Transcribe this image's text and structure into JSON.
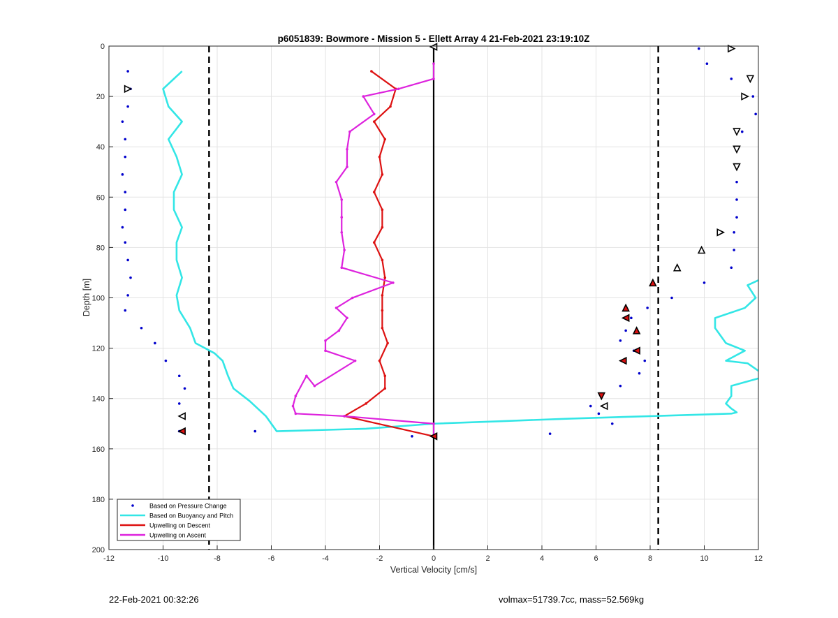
{
  "chart_data": {
    "type": "line",
    "title": "p6051839: Bowmore - Mission 5 - Ellett Array 4 21-Feb-2021 23:19:10Z",
    "xlabel": "Vertical Velocity [cm/s]",
    "ylabel": "Depth [m]",
    "xlim": [
      -12,
      12
    ],
    "ylim": [
      0,
      200
    ],
    "y_reversed": true,
    "grid": true,
    "legend_position": "bottom-left",
    "x_ticks": [
      -12,
      -10,
      -8,
      -6,
      -4,
      -2,
      0,
      2,
      4,
      6,
      8,
      10,
      12
    ],
    "y_ticks": [
      0,
      20,
      40,
      60,
      80,
      100,
      120,
      140,
      160,
      180,
      200
    ],
    "vertical_lines": [
      {
        "x": -8.3,
        "style": "dashed",
        "color": "#000000"
      },
      {
        "x": 8.3,
        "style": "dashed",
        "color": "#000000"
      },
      {
        "x": 0,
        "style": "solid",
        "color": "#000000"
      }
    ],
    "series": [
      {
        "name": "Based on Pressure Change",
        "kind": "points",
        "color": "#0000cc",
        "points": [
          [
            -11.3,
            10
          ],
          [
            -11.2,
            17
          ],
          [
            -11.3,
            24
          ],
          [
            -11.5,
            30
          ],
          [
            -11.4,
            37
          ],
          [
            -11.4,
            44
          ],
          [
            -11.5,
            51
          ],
          [
            -11.4,
            58
          ],
          [
            -11.4,
            65
          ],
          [
            -11.5,
            72
          ],
          [
            -11.4,
            78
          ],
          [
            -11.3,
            85
          ],
          [
            -11.2,
            92
          ],
          [
            -11.3,
            99
          ],
          [
            -11.4,
            105
          ],
          [
            -10.8,
            112
          ],
          [
            -10.3,
            118
          ],
          [
            -9.9,
            125
          ],
          [
            -9.4,
            131
          ],
          [
            -9.2,
            136
          ],
          [
            -9.4,
            142
          ],
          [
            -9.3,
            147
          ],
          [
            -9.4,
            153
          ],
          [
            -6.6,
            153
          ],
          [
            -0.8,
            155
          ],
          [
            9.8,
            1
          ],
          [
            10.1,
            7
          ],
          [
            11.0,
            13
          ],
          [
            11.8,
            20
          ],
          [
            11.9,
            27
          ],
          [
            11.4,
            34
          ],
          [
            11.2,
            41
          ],
          [
            11.2,
            48
          ],
          [
            11.2,
            54
          ],
          [
            11.2,
            61
          ],
          [
            11.2,
            68
          ],
          [
            11.1,
            74
          ],
          [
            11.1,
            81
          ],
          [
            11.0,
            88
          ],
          [
            10.0,
            94
          ],
          [
            8.8,
            100
          ],
          [
            7.9,
            104
          ],
          [
            7.3,
            108
          ],
          [
            7.1,
            113
          ],
          [
            6.9,
            117
          ],
          [
            7.4,
            121
          ],
          [
            7.8,
            125
          ],
          [
            7.6,
            130
          ],
          [
            6.9,
            135
          ],
          [
            5.8,
            143
          ],
          [
            6.1,
            146
          ],
          [
            6.6,
            150
          ],
          [
            4.3,
            154
          ]
        ]
      },
      {
        "name": "Based on Buoyancy and Pitch",
        "kind": "line",
        "color": "#33e6e6",
        "segments": [
          [
            [
              -9.3,
              10
            ],
            [
              -9.6,
              13
            ],
            [
              -10.0,
              17
            ],
            [
              -9.8,
              24
            ],
            [
              -9.3,
              30
            ],
            [
              -9.8,
              37
            ],
            [
              -9.5,
              44
            ],
            [
              -9.3,
              51
            ],
            [
              -9.6,
              58
            ],
            [
              -9.6,
              65
            ],
            [
              -9.3,
              72
            ],
            [
              -9.5,
              78
            ],
            [
              -9.5,
              85
            ],
            [
              -9.3,
              92
            ],
            [
              -9.5,
              99
            ],
            [
              -9.4,
              105
            ],
            [
              -9.0,
              112
            ],
            [
              -8.8,
              118
            ],
            [
              -8.1,
              122
            ],
            [
              -7.8,
              125
            ],
            [
              -7.6,
              131
            ],
            [
              -7.4,
              136
            ],
            [
              -6.8,
              141
            ],
            [
              -6.2,
              147
            ],
            [
              -5.8,
              153
            ],
            [
              -2.5,
              152
            ],
            [
              0,
              150
            ],
            [
              2.5,
              149
            ],
            [
              5.0,
              148
            ],
            [
              8.0,
              147
            ],
            [
              11.0,
              146
            ],
            [
              11.2,
              145.5
            ],
            [
              11.0,
              144
            ],
            [
              10.8,
              142
            ],
            [
              11.0,
              139
            ],
            [
              11.0,
              135
            ],
            [
              12.0,
              132
            ]
          ],
          [
            [
              12.0,
              129
            ],
            [
              11.6,
              126
            ],
            [
              10.8,
              125
            ],
            [
              11.5,
              121
            ],
            [
              10.8,
              118
            ],
            [
              10.4,
              112
            ],
            [
              10.4,
              108
            ],
            [
              11.5,
              104
            ],
            [
              11.9,
              100
            ],
            [
              11.6,
              95
            ],
            [
              12.0,
              93
            ]
          ]
        ]
      },
      {
        "name": "Upwelling on Descent",
        "kind": "line",
        "color": "#dd1111",
        "points": [
          [
            -2.3,
            10
          ],
          [
            -1.4,
            17
          ],
          [
            -1.6,
            24
          ],
          [
            -2.2,
            30
          ],
          [
            -1.8,
            37
          ],
          [
            -2.0,
            44
          ],
          [
            -1.9,
            51
          ],
          [
            -2.2,
            58
          ],
          [
            -1.9,
            65
          ],
          [
            -1.9,
            72
          ],
          [
            -2.2,
            78
          ],
          [
            -1.9,
            85
          ],
          [
            -1.8,
            92
          ],
          [
            -1.9,
            99
          ],
          [
            -1.9,
            105
          ],
          [
            -1.9,
            112
          ],
          [
            -1.7,
            118
          ],
          [
            -2.0,
            125
          ],
          [
            -1.8,
            131
          ],
          [
            -1.8,
            136
          ],
          [
            -2.5,
            142
          ],
          [
            -3.3,
            147
          ],
          [
            0,
            155
          ]
        ]
      },
      {
        "name": "Upwelling on Ascent",
        "kind": "line",
        "color": "#dd22dd",
        "points": [
          [
            0,
            7
          ],
          [
            0,
            13
          ],
          [
            -1.3,
            17
          ],
          [
            -2.6,
            20
          ],
          [
            -2.2,
            27
          ],
          [
            -3.1,
            34
          ],
          [
            -3.2,
            41
          ],
          [
            -3.2,
            48
          ],
          [
            -3.6,
            54
          ],
          [
            -3.4,
            61
          ],
          [
            -3.4,
            68
          ],
          [
            -3.4,
            74
          ],
          [
            -3.3,
            81
          ],
          [
            -3.4,
            88
          ],
          [
            -1.5,
            94
          ],
          [
            -3.0,
            100
          ],
          [
            -3.6,
            104
          ],
          [
            -3.2,
            108
          ],
          [
            -3.5,
            113
          ],
          [
            -4.0,
            117
          ],
          [
            -4.0,
            121
          ],
          [
            -2.9,
            125
          ],
          [
            -4.4,
            135
          ],
          [
            -4.7,
            131
          ],
          [
            -5.1,
            139
          ],
          [
            -5.2,
            143
          ],
          [
            -5.1,
            146
          ],
          [
            -3.3,
            147
          ],
          [
            0,
            150
          ],
          [
            0,
            155
          ]
        ]
      }
    ],
    "triangle_markers": [
      {
        "x": 0,
        "y": 0.3,
        "dir": "left",
        "fill": "#ffffff"
      },
      {
        "x": 11.0,
        "y": 1,
        "dir": "right",
        "fill": "#ffffff"
      },
      {
        "x": 11.7,
        "y": 13,
        "dir": "down",
        "fill": "#ffffff"
      },
      {
        "x": 11.5,
        "y": 20,
        "dir": "right",
        "fill": "#ffffff"
      },
      {
        "x": 11.2,
        "y": 34,
        "dir": "down",
        "fill": "#ffffff"
      },
      {
        "x": 11.2,
        "y": 41,
        "dir": "down",
        "fill": "#ffffff"
      },
      {
        "x": 11.2,
        "y": 48,
        "dir": "down",
        "fill": "#ffffff"
      },
      {
        "x": 10.6,
        "y": 74,
        "dir": "right",
        "fill": "#ffffff"
      },
      {
        "x": 9.9,
        "y": 81,
        "dir": "up",
        "fill": "#ffffff"
      },
      {
        "x": 9.0,
        "y": 88,
        "dir": "up",
        "fill": "#ffffff"
      },
      {
        "x": 8.1,
        "y": 94,
        "dir": "up",
        "fill": "#dd1111"
      },
      {
        "x": 7.1,
        "y": 104,
        "dir": "up",
        "fill": "#dd1111"
      },
      {
        "x": 7.1,
        "y": 108,
        "dir": "left",
        "fill": "#dd1111"
      },
      {
        "x": 7.5,
        "y": 113,
        "dir": "up",
        "fill": "#dd1111"
      },
      {
        "x": 7.5,
        "y": 121,
        "dir": "left",
        "fill": "#dd1111"
      },
      {
        "x": 7.0,
        "y": 125,
        "dir": "left",
        "fill": "#dd1111"
      },
      {
        "x": 6.2,
        "y": 139,
        "dir": "down",
        "fill": "#dd1111"
      },
      {
        "x": 6.3,
        "y": 143,
        "dir": "left",
        "fill": "#ffffff"
      },
      {
        "x": -11.3,
        "y": 17,
        "dir": "right",
        "fill": "#ffffff"
      },
      {
        "x": -9.3,
        "y": 147,
        "dir": "left",
        "fill": "#ffffff"
      },
      {
        "x": -9.3,
        "y": 153,
        "dir": "left",
        "fill": "#dd1111"
      },
      {
        "x": 0,
        "y": 155,
        "dir": "left",
        "fill": "#dd1111"
      }
    ]
  },
  "footer": {
    "timestamp": "22-Feb-2021 00:32:26",
    "info": "volmax=51739.7cc, mass=52.569kg"
  }
}
